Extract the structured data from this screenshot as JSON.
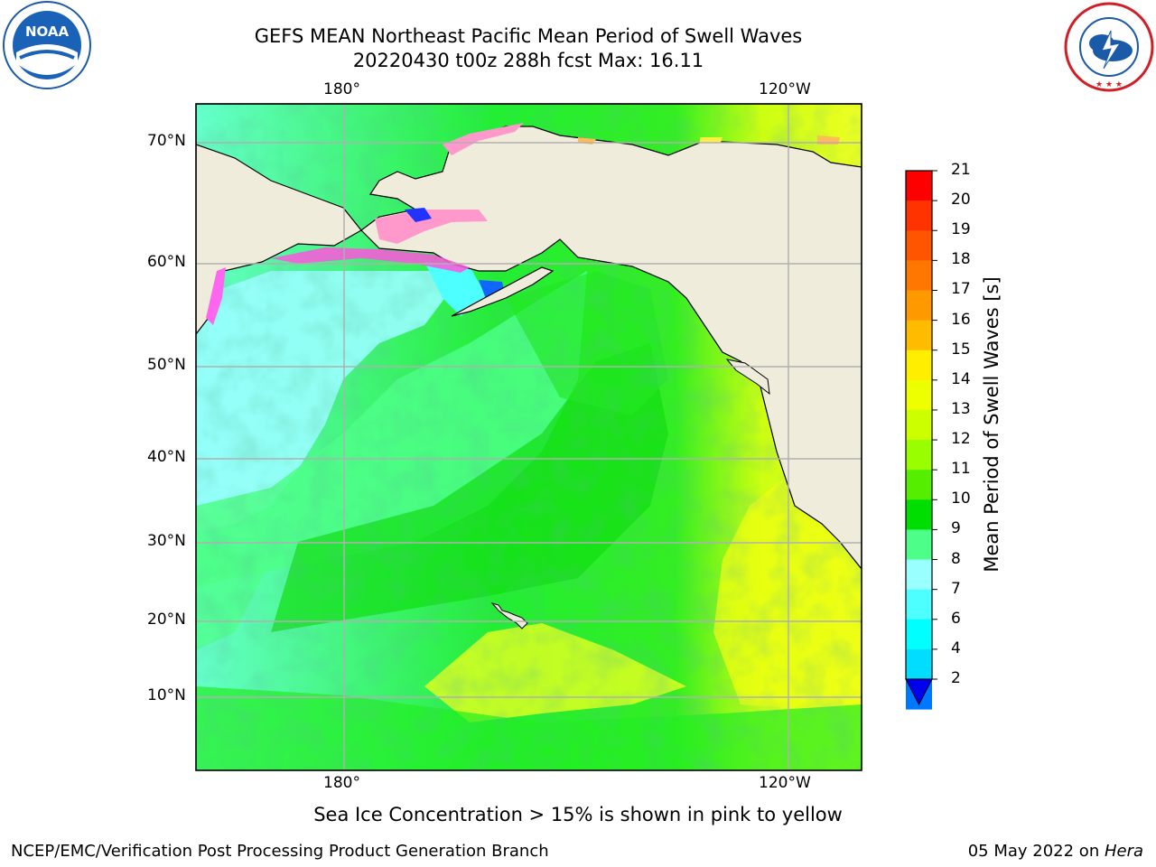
{
  "title_line1": "GEFS MEAN Northeast Pacific Mean Period of Swell Waves",
  "title_line2": "20220430 t00z 288h fcst   Max: 16.11",
  "map": {
    "lon_top_labels": [
      "180°",
      "120°W"
    ],
    "lon_bottom_labels": [
      "180°",
      "120°W"
    ],
    "lat_labels": [
      "70°N",
      "60°N",
      "50°N",
      "40°N",
      "30°N",
      "20°N",
      "10°N"
    ],
    "gridlines": true,
    "land_color": "#efecdc",
    "ocean_colors": {
      "light_cyan": "#99ffff",
      "cyan": "#4dffff",
      "aqua_green": "#4dff88",
      "green": "#00ee00",
      "light_green": "#55ff00",
      "yellow_green": "#ccff00",
      "yellow": "#ffff00"
    }
  },
  "colorbar": {
    "label": "Mean Period of Swell Waves [s]",
    "ticks": [
      "21",
      "20",
      "19",
      "18",
      "17",
      "16",
      "15",
      "14",
      "13",
      "12",
      "11",
      "10",
      "9",
      "8",
      "7",
      "6",
      "4",
      "2"
    ],
    "colors": [
      "#ff0000",
      "#ff3300",
      "#ff5500",
      "#ff7700",
      "#ff9900",
      "#ffbb00",
      "#ffee00",
      "#eeff00",
      "#ccff00",
      "#99ff00",
      "#55ee00",
      "#00dd00",
      "#4dff88",
      "#99ffff",
      "#4dffff",
      "#00ffff",
      "#00ddff",
      "#0077ff"
    ],
    "under_color": "#0000ee"
  },
  "note": "Sea Ice Concentration > 15% is shown in pink to yellow",
  "footer_left": "NCEP/EMC/Verification Post Processing Product Generation Branch",
  "footer_right_prefix": "05 May 2022 on ",
  "footer_right_host": "Hera",
  "logos": {
    "left": "NOAA",
    "right_text": "NATIONAL WEATHER SERVICE"
  }
}
